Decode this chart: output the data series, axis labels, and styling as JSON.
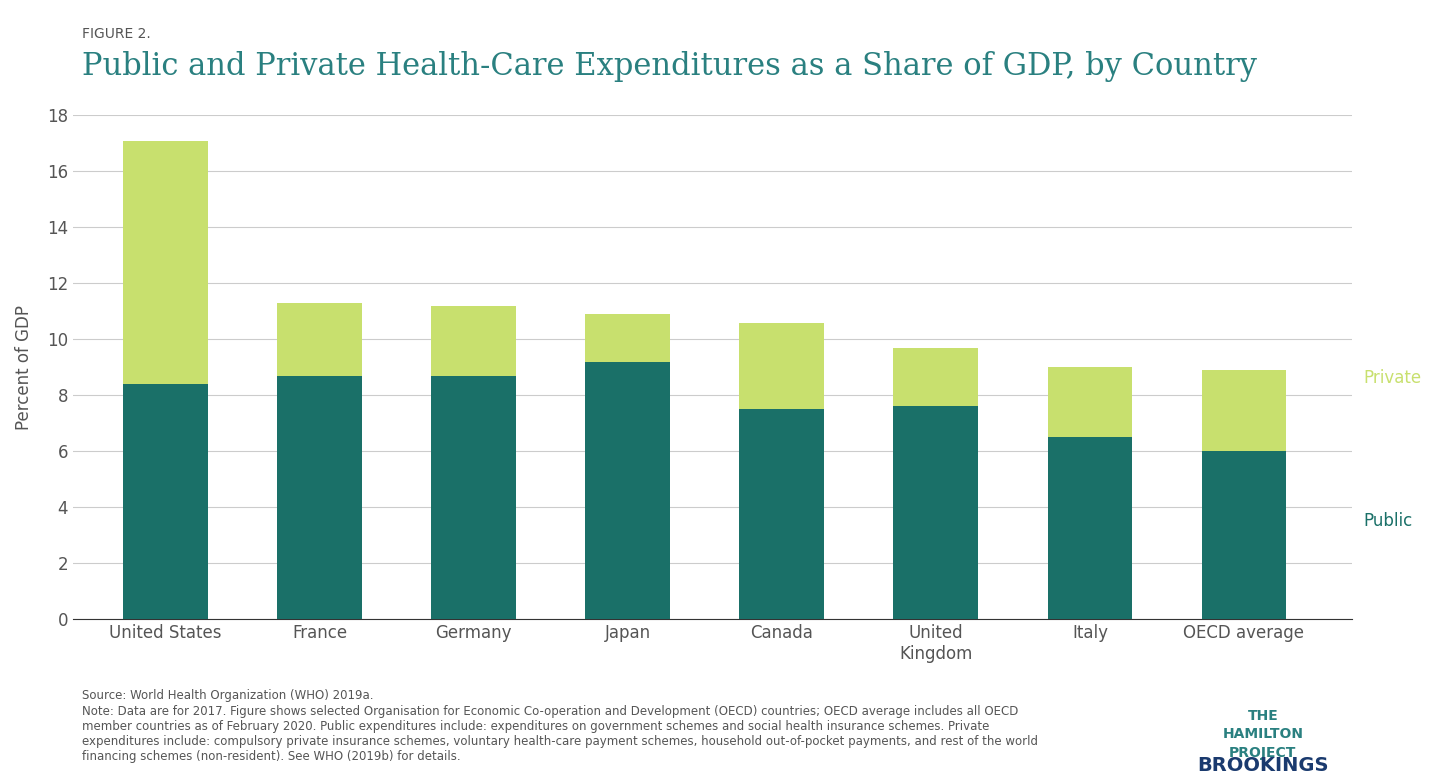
{
  "figure_label": "FIGURE 2.",
  "title": "Public and Private Health-Care Expenditures as a Share of GDP, by Country",
  "ylabel": "Percent of GDP",
  "categories": [
    "United States",
    "France",
    "Germany",
    "Japan",
    "Canada",
    "United\nKingdom",
    "Italy",
    "OECD average"
  ],
  "public_values": [
    8.4,
    8.7,
    8.7,
    9.2,
    7.5,
    7.6,
    6.5,
    6.0
  ],
  "private_values": [
    8.7,
    2.6,
    2.5,
    1.7,
    3.1,
    2.1,
    2.5,
    2.9
  ],
  "public_color": "#1a7068",
  "private_color": "#c8e06e",
  "ylim": [
    0,
    18
  ],
  "yticks": [
    0,
    2,
    4,
    6,
    8,
    10,
    12,
    14,
    16,
    18
  ],
  "bar_width": 0.55,
  "legend_private_label": "Private",
  "legend_public_label": "Public",
  "legend_color_private": "#c8e06e",
  "legend_color_public": "#1a7068",
  "source_text": "Source: World Health Organization (WHO) 2019a.",
  "note_text": "Note: Data are for 2017. Figure shows selected Organisation for Economic Co-operation and Development (OECD) countries; OECD average includes all OECD\nmember countries as of February 2020. Public expenditures include: expenditures on government schemes and social health insurance schemes. Private\nexpenditures include: compulsory private insurance schemes, voluntary health-care payment schemes, household out-of-pocket payments, and rest of the world\nfinancing schemes (non-resident). See WHO (2019b) for details.",
  "background_color": "#ffffff",
  "grid_color": "#cccccc",
  "title_color": "#2a8080",
  "figure_label_color": "#555555",
  "axis_label_color": "#555555",
  "tick_label_color": "#555555"
}
